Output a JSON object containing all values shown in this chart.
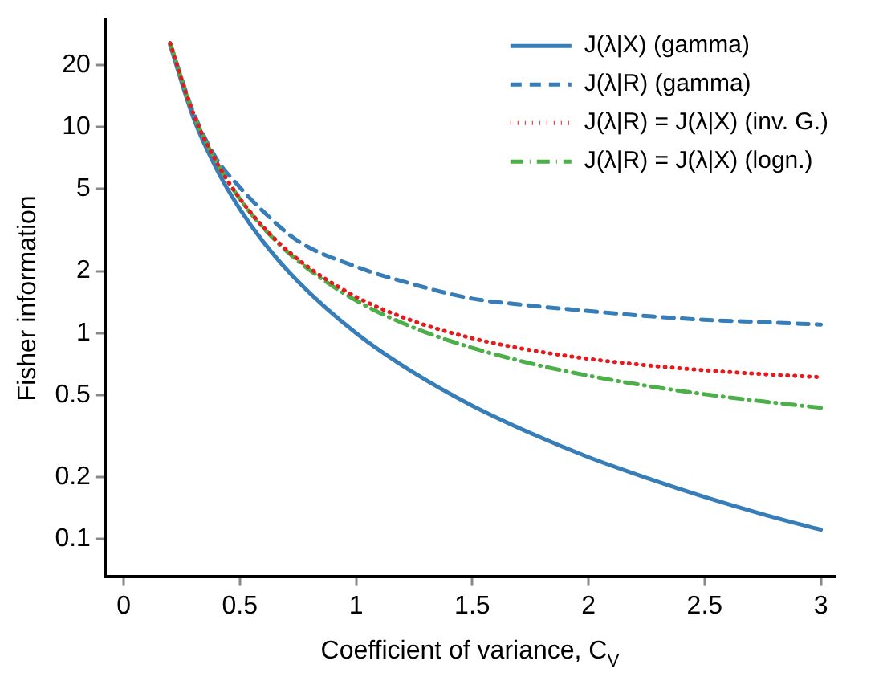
{
  "chart_data": {
    "type": "line",
    "xlabel": "Coefficient of variance, C$_{V}$",
    "ylabel": "Fisher information",
    "log": "y",
    "grid": false,
    "legend": "top right",
    "marker": "none",
    "x": [
      0.2,
      0.3,
      0.4,
      0.5,
      0.6,
      0.75,
      1,
      1.25,
      1.5,
      1.75,
      2,
      2.25,
      2.5,
      2.75,
      3
    ],
    "xlim": [
      -0.08,
      3.06
    ],
    "xticks": [
      0,
      0.5,
      1,
      1.5,
      2,
      2.5,
      3
    ],
    "ylim": [
      0.066,
      33
    ],
    "yticks": [
      0.1,
      0.2,
      0.5,
      1,
      2,
      5,
      10,
      20
    ],
    "series": [
      {
        "name": "J(λ|X) (gamma)",
        "color": "#377eb8",
        "line_style": "solid",
        "values": [
          25,
          11.1,
          6.25,
          4,
          2.78,
          1.78,
          1,
          0.64,
          0.444,
          0.327,
          0.25,
          0.198,
          0.16,
          0.132,
          0.111
        ]
      },
      {
        "name": "J(λ|R) (gamma)",
        "color": "#377eb8",
        "line_style": "dashed",
        "values": [
          25.5,
          11.8,
          7.0,
          5.1,
          3.9,
          2.8,
          2.1,
          1.72,
          1.47,
          1.36,
          1.28,
          1.21,
          1.16,
          1.13,
          1.1
        ]
      },
      {
        "name": "J(λ|R) = J(λ|X) (inv. G.)",
        "color": "#e41a1c",
        "line_style": "dotted",
        "values": [
          25.5,
          11.6,
          6.75,
          4.5,
          3.28,
          2.28,
          1.5,
          1.14,
          0.944,
          0.827,
          0.75,
          0.698,
          0.66,
          0.632,
          0.611
        ]
      },
      {
        "name": "J(λ|R) = J(λ|X) (logn.)",
        "color": "#4daf4a",
        "line_style": "dashdot",
        "values": [
          25.5,
          11.6,
          6.74,
          4.48,
          3.25,
          2.24,
          1.44,
          1.06,
          0.848,
          0.713,
          0.621,
          0.555,
          0.505,
          0.466,
          0.434
        ]
      }
    ]
  }
}
